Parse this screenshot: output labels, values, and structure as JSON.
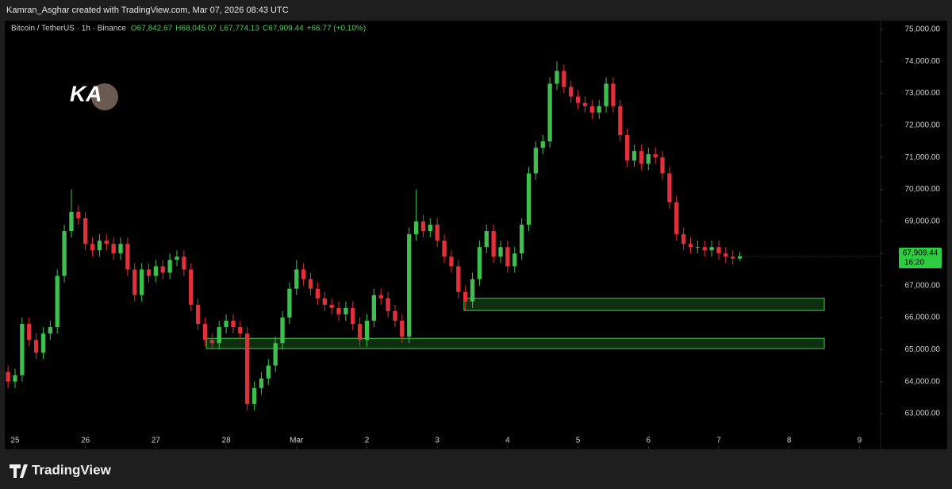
{
  "top_caption": "Kamran_Asghar created with TradingView.com, Mar 07, 2026 08:43 UTC",
  "footer_brand": "TradingView",
  "logo_text": "KA",
  "chart_data": {
    "type": "candlestick",
    "title": "Bitcoin / TetherUS · 1h · Binance",
    "ohlc_header": {
      "open": "O67,842.67",
      "high": "H68,045.07",
      "low": "L67,774.13",
      "close": "C67,909.44",
      "change": "+66.77 (+0.10%)"
    },
    "last_price_label": "67,909.44",
    "countdown": "16:20",
    "up_color": "#3fbf4f",
    "down_color": "#e0303a",
    "zone_color": "#3fd14a",
    "x": [
      -0.1,
      0.0,
      0.1,
      0.2,
      0.3,
      0.4,
      0.5,
      0.6,
      0.7,
      0.8,
      0.9,
      1.0,
      1.1,
      1.2,
      1.3,
      1.4,
      1.5,
      1.6,
      1.7,
      1.8,
      1.9,
      2.0,
      2.1,
      2.2,
      2.3,
      2.4,
      2.5,
      2.6,
      2.7,
      2.8,
      2.9,
      3.0,
      3.1,
      3.2,
      3.3,
      3.4,
      3.5,
      3.6,
      3.7,
      3.8,
      3.9,
      4.0,
      4.1,
      4.2,
      4.3,
      4.4,
      4.5,
      4.6,
      4.7,
      4.8,
      4.9,
      5.0,
      5.1,
      5.2,
      5.3,
      5.4,
      5.5,
      5.6,
      5.7,
      5.8,
      5.9,
      6.0,
      6.1,
      6.2,
      6.3,
      6.4,
      6.5,
      6.6,
      6.7,
      6.8,
      6.9,
      7.0,
      7.1,
      7.2,
      7.3,
      7.4,
      7.5,
      7.6,
      7.7,
      7.8,
      7.9,
      8.0,
      8.1,
      8.2,
      8.3,
      8.4,
      8.5,
      8.6,
      8.7,
      8.8,
      8.9,
      9.0,
      9.1,
      9.2,
      9.3,
      9.4,
      9.5,
      9.6,
      9.7,
      9.8,
      9.9,
      10.0,
      10.1,
      10.2,
      10.3
    ],
    "open": [
      64300,
      64000,
      64200,
      65800,
      65300,
      64900,
      65500,
      65700,
      67300,
      68700,
      69300,
      69100,
      68300,
      68100,
      68400,
      68300,
      68000,
      68300,
      67500,
      66700,
      67500,
      67300,
      67600,
      67400,
      67800,
      67900,
      67500,
      66400,
      65800,
      65300,
      65200,
      65700,
      65900,
      65700,
      65500,
      63300,
      63800,
      64100,
      64500,
      65200,
      66000,
      66900,
      67500,
      67200,
      66900,
      66600,
      66400,
      66300,
      66100,
      66300,
      65800,
      65300,
      65900,
      66700,
      66600,
      66200,
      65900,
      65400,
      68600,
      69000,
      68700,
      68900,
      68400,
      67900,
      67600,
      66800,
      66500,
      67200,
      68200,
      68700,
      67900,
      68200,
      67600,
      68000,
      68900,
      70500,
      71300,
      71500,
      73300,
      73700,
      73200,
      72900,
      72700,
      72600,
      72400,
      72600,
      73300,
      72600,
      71700,
      70900,
      71200,
      70800,
      71100,
      71000,
      70500,
      69600,
      68600,
      68300,
      68200,
      68200,
      68100,
      68200,
      68000,
      67900,
      67842.67
    ],
    "high": [
      64500,
      64400,
      66000,
      66000,
      65500,
      65700,
      65900,
      67500,
      68900,
      70000,
      69500,
      69300,
      68500,
      68600,
      68600,
      68500,
      68500,
      68500,
      67700,
      67700,
      67700,
      67800,
      67800,
      68000,
      68100,
      68100,
      67700,
      66600,
      66000,
      65500,
      65900,
      66100,
      66100,
      65900,
      65700,
      64000,
      64300,
      64700,
      65400,
      66200,
      67100,
      67800,
      67700,
      67400,
      67100,
      66800,
      66600,
      66500,
      66500,
      66500,
      66000,
      66100,
      66900,
      66900,
      66800,
      66400,
      66100,
      68800,
      70000,
      69200,
      69100,
      69100,
      68600,
      68100,
      67800,
      67000,
      67400,
      68400,
      68900,
      68900,
      68400,
      68400,
      68200,
      69100,
      70700,
      71500,
      71700,
      73500,
      74000,
      73900,
      73400,
      73100,
      72900,
      72800,
      72800,
      73500,
      73500,
      72800,
      71900,
      71400,
      71400,
      71300,
      71300,
      71200,
      70700,
      69800,
      68800,
      68500,
      68400,
      68400,
      68400,
      68400,
      68200,
      68100,
      68045.07
    ],
    "low": [
      63800,
      63800,
      64000,
      65100,
      64700,
      64700,
      65300,
      65500,
      67100,
      68500,
      68900,
      68100,
      67900,
      67900,
      68100,
      67800,
      67800,
      67300,
      66500,
      66500,
      67100,
      67100,
      67200,
      67200,
      67600,
      67300,
      66200,
      65600,
      65100,
      65000,
      65000,
      65500,
      65500,
      65300,
      63100,
      63100,
      63600,
      63900,
      64300,
      65000,
      65800,
      66700,
      67000,
      66700,
      66400,
      66200,
      66100,
      65900,
      65900,
      65600,
      65100,
      65100,
      65700,
      66400,
      66000,
      65700,
      65200,
      65200,
      68400,
      68500,
      68500,
      68200,
      67700,
      67400,
      66600,
      66200,
      66300,
      67000,
      68000,
      67700,
      67700,
      67400,
      67400,
      67800,
      68700,
      70300,
      71100,
      71300,
      73100,
      73000,
      72700,
      72500,
      72400,
      72200,
      72200,
      72400,
      72400,
      71500,
      70700,
      70700,
      70600,
      70600,
      70800,
      70300,
      69400,
      68400,
      68100,
      68000,
      68000,
      67900,
      67900,
      67800,
      67700,
      67650,
      67774.13
    ],
    "close": [
      64000,
      64200,
      65800,
      65300,
      64900,
      65500,
      65700,
      67300,
      68700,
      69300,
      69100,
      68300,
      68100,
      68400,
      68300,
      68000,
      68300,
      67500,
      66700,
      67500,
      67300,
      67600,
      67400,
      67800,
      67900,
      67500,
      66400,
      65800,
      65300,
      65200,
      65700,
      65900,
      65700,
      65500,
      63300,
      63800,
      64100,
      64500,
      65200,
      66000,
      66900,
      67500,
      67200,
      66900,
      66600,
      66400,
      66300,
      66100,
      66300,
      65800,
      65300,
      65900,
      66700,
      66600,
      66200,
      65900,
      65400,
      68600,
      69000,
      68700,
      68900,
      68400,
      67900,
      67600,
      66800,
      66500,
      67200,
      68200,
      68700,
      67900,
      68200,
      67600,
      68000,
      68900,
      70500,
      71300,
      71500,
      73300,
      73700,
      73200,
      72900,
      72700,
      72600,
      72400,
      72600,
      73300,
      72600,
      71700,
      70900,
      71200,
      70800,
      71100,
      71000,
      70500,
      69600,
      68600,
      68300,
      68200,
      68200,
      68100,
      68200,
      68000,
      67900,
      67842.67,
      67909.44
    ],
    "zones": [
      {
        "x": [
          6.38,
          11.5
        ],
        "y": [
          66220,
          66600
        ]
      },
      {
        "x": [
          2.72,
          11.5
        ],
        "y": [
          65030,
          65350
        ]
      }
    ],
    "xlim": [
      -0.214,
      12.3
    ],
    "ylim": [
      61910,
      75220
    ],
    "xticks": [
      {
        "value": 0,
        "label": "25"
      },
      {
        "value": 1,
        "label": "26"
      },
      {
        "value": 2,
        "label": "27"
      },
      {
        "value": 3,
        "label": "28"
      },
      {
        "value": 4,
        "label": "Mar"
      },
      {
        "value": 5,
        "label": "2"
      },
      {
        "value": 6,
        "label": "3"
      },
      {
        "value": 7,
        "label": "4"
      },
      {
        "value": 8,
        "label": "5"
      },
      {
        "value": 9,
        "label": "6"
      },
      {
        "value": 10,
        "label": "7"
      },
      {
        "value": 11,
        "label": "8"
      },
      {
        "value": 12,
        "label": "9"
      }
    ],
    "yticks": [
      {
        "value": 63000,
        "label": "63,000.00"
      },
      {
        "value": 64000,
        "label": "64,000.00"
      },
      {
        "value": 65000,
        "label": "65,000.00"
      },
      {
        "value": 66000,
        "label": "66,000.00"
      },
      {
        "value": 67000,
        "label": "67,000.00"
      },
      {
        "value": 68000,
        "label": "68,000.00"
      },
      {
        "value": 69000,
        "label": "69,000.00"
      },
      {
        "value": 70000,
        "label": "70,000.00"
      },
      {
        "value": 71000,
        "label": "71,000.00"
      },
      {
        "value": 72000,
        "label": "72,000.00"
      },
      {
        "value": 73000,
        "label": "73,000.00"
      },
      {
        "value": 74000,
        "label": "74,000.00"
      },
      {
        "value": 75000,
        "label": "75,000.00"
      }
    ]
  }
}
